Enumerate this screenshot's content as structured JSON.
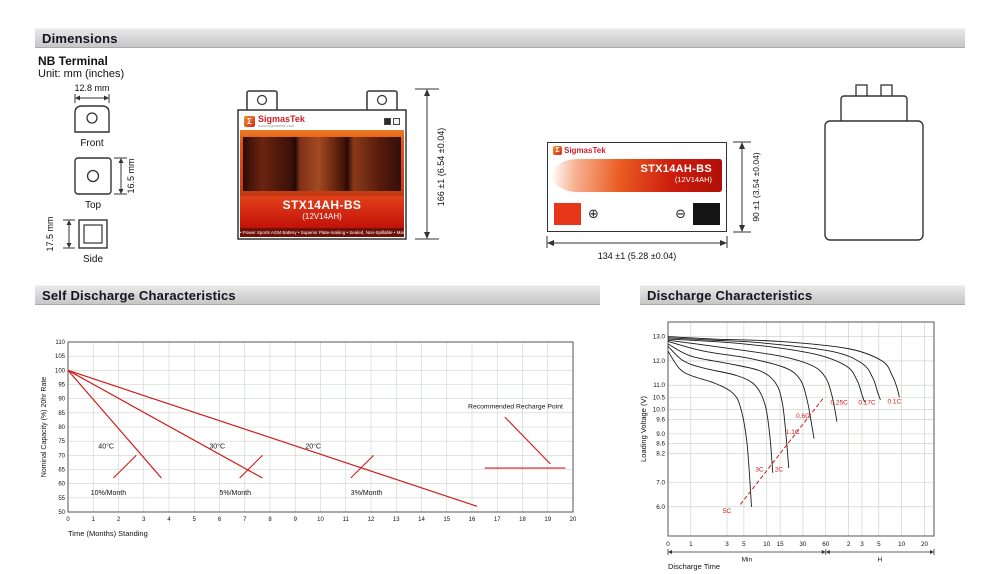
{
  "colors": {
    "accent_red": "#cf1f25",
    "chart_line_red": "#cf1b1b",
    "curve_black": "#1a1a1a",
    "header_bar": "#d6d6d6"
  },
  "sections": {
    "dimensions_title": "Dimensions",
    "self_discharge_title": "Self Discharge Characteristics",
    "discharge_title": "Discharge Characteristics"
  },
  "terminal": {
    "heading": "NB Terminal",
    "unit_note": "Unit: mm (inches)",
    "front": {
      "label": "Front",
      "dim": "12.8 mm"
    },
    "top": {
      "label": "Top",
      "dim": "16.5 mm"
    },
    "side": {
      "label": "Side",
      "dim": "17.5 mm"
    }
  },
  "battery": {
    "brand": "SigmasTek",
    "logo_glyph": "Σ",
    "brand_url": "www.sigmastek.com",
    "model": "STX14AH-BS",
    "rating": "(12V14AH)",
    "features": "• Power Sports AGM Battery   • Superior Plate-making   • Sealed, Non-Spillable   • Maintenance Free",
    "front_height_dim": "166 ±1 (6.54 ±0.04)",
    "side_width_dim": "134 ±1 (5.28 ±0.04)",
    "side_height_dim": "90 ±1 (3.54 ±0.04)",
    "plus_symbol": "⊕",
    "minus_symbol": "⊖"
  },
  "chart_data": [
    {
      "id": "self_discharge",
      "type": "line",
      "title": "Self Discharge Characteristics",
      "xlabel": "Time (Months) Standing",
      "ylabel": "Nominal Capacity (%) 20hr Rate",
      "xlim": [
        0,
        20
      ],
      "ylim": [
        50,
        110
      ],
      "x_ticks": [
        0,
        1,
        2,
        3,
        4,
        5,
        6,
        7,
        8,
        9,
        10,
        11,
        12,
        13,
        14,
        15,
        16,
        17,
        18,
        19,
        20
      ],
      "y_ticks": [
        110,
        105,
        100,
        95,
        90,
        85,
        80,
        75,
        70,
        65,
        60,
        55,
        50
      ],
      "grid": true,
      "legend_position": "none",
      "series": [
        {
          "name": "40°C",
          "rate": "10%/Month",
          "points": [
            [
              0,
              100
            ],
            [
              3.7,
              62
            ]
          ]
        },
        {
          "name": "30°C",
          "rate": "5%/Month",
          "points": [
            [
              0,
              100
            ],
            [
              7.7,
              62
            ]
          ]
        },
        {
          "name": "20°C",
          "rate": "3%/Month",
          "points": [
            [
              0,
              100
            ],
            [
              16.2,
              52
            ]
          ]
        }
      ],
      "temp_labels": [
        {
          "text": "40°C",
          "x": 1.2,
          "y": 72.5
        },
        {
          "text": "30°C",
          "x": 5.6,
          "y": 72.5
        },
        {
          "text": "20°C",
          "x": 9.4,
          "y": 72.5
        }
      ],
      "rate_labels": [
        {
          "text": "10%/Month",
          "x": 0.9,
          "y": 56
        },
        {
          "text": "5%/Month",
          "x": 6.0,
          "y": 56
        },
        {
          "text": "3%/Month",
          "x": 11.2,
          "y": 56
        }
      ],
      "slash_marks": [
        [
          [
            1.8,
            62
          ],
          [
            2.7,
            70
          ]
        ],
        [
          [
            6.8,
            62
          ],
          [
            7.7,
            70
          ]
        ],
        [
          [
            11.2,
            62
          ],
          [
            12.1,
            70
          ]
        ]
      ],
      "recharge_point": {
        "label": "Recommended Recharge Point",
        "label_x": 19.6,
        "label_y": 86.5,
        "leader": [
          [
            17.3,
            83.5
          ],
          [
            19.1,
            67
          ]
        ],
        "segment": [
          [
            16.5,
            65.5
          ],
          [
            19.7,
            65.5
          ]
        ]
      }
    },
    {
      "id": "discharge",
      "type": "line",
      "title": "Discharge Characteristics",
      "xlabel": "Discharge Time",
      "ylabel": "Loading Voltage (V)",
      "x_scale": "log",
      "t_domain_min": [
        0.5,
        1600
      ],
      "ylim": [
        4.8,
        13.6
      ],
      "y_ticks": [
        13.0,
        12.0,
        11.0,
        10.5,
        10.0,
        9.6,
        9.0,
        8.6,
        8.2,
        7.0,
        6.0
      ],
      "x_ticks_minutes": [
        1,
        3,
        5,
        10,
        15,
        30,
        60
      ],
      "x_ticks_hours": [
        2,
        3,
        5,
        10,
        20
      ],
      "origin_label": "0",
      "unit_labels": {
        "minutes": "Min",
        "hours": "H"
      },
      "grid": true,
      "curves": [
        {
          "name": "0.1C",
          "points": [
            [
              0.5,
              13.0
            ],
            [
              2,
              12.9
            ],
            [
              15,
              12.8
            ],
            [
              120,
              12.5
            ],
            [
              330,
              12.0
            ],
            [
              450,
              11.4
            ],
            [
              520,
              10.9
            ],
            [
              560,
              10.5
            ]
          ]
        },
        {
          "name": "0.17C",
          "points": [
            [
              0.5,
              12.95
            ],
            [
              2,
              12.85
            ],
            [
              8,
              12.75
            ],
            [
              70,
              12.4
            ],
            [
              180,
              11.9
            ],
            [
              250,
              11.3
            ],
            [
              290,
              10.7
            ],
            [
              315,
              10.4
            ]
          ]
        },
        {
          "name": "0.25C",
          "points": [
            [
              0.5,
              12.9
            ],
            [
              5,
              12.7
            ],
            [
              40,
              12.3
            ],
            [
              110,
              11.8
            ],
            [
              155,
              11.2
            ],
            [
              180,
              10.6
            ],
            [
              195,
              10.3
            ]
          ]
        },
        {
          "name": "0.6C",
          "points": [
            [
              0.5,
              12.85
            ],
            [
              2,
              12.6
            ],
            [
              15,
              12.2
            ],
            [
              40,
              11.8
            ],
            [
              60,
              11.3
            ],
            [
              72,
              10.6
            ],
            [
              80,
              9.9
            ],
            [
              84,
              9.5
            ]
          ]
        },
        {
          "name": "1.1C",
          "points": [
            [
              0.5,
              12.8
            ],
            [
              1.5,
              12.4
            ],
            [
              6,
              12.1
            ],
            [
              18,
              11.7
            ],
            [
              28,
              11.2
            ],
            [
              34,
              10.4
            ],
            [
              39,
              9.4
            ],
            [
              42,
              8.8
            ]
          ]
        },
        {
          "name": "2C",
          "points": [
            [
              0.5,
              12.7
            ],
            [
              1,
              12.2
            ],
            [
              3,
              11.9
            ],
            [
              8,
              11.6
            ],
            [
              13,
              11.1
            ],
            [
              16,
              10.3
            ],
            [
              18,
              8.9
            ],
            [
              19.5,
              7.6
            ]
          ]
        },
        {
          "name": "3C",
          "points": [
            [
              0.5,
              12.6
            ],
            [
              0.8,
              12.0
            ],
            [
              1.5,
              11.7
            ],
            [
              4,
              11.4
            ],
            [
              7,
              11.0
            ],
            [
              9.5,
              10.2
            ],
            [
              11,
              8.9
            ],
            [
              12,
              7.4
            ]
          ]
        },
        {
          "name": "5C",
          "points": [
            [
              0.5,
              12.4
            ],
            [
              0.7,
              11.7
            ],
            [
              1,
              11.4
            ],
            [
              2,
              11.1
            ],
            [
              3.5,
              10.7
            ],
            [
              4.5,
              10.1
            ],
            [
              5.5,
              8.6
            ],
            [
              6.3,
              6.0
            ]
          ]
        }
      ],
      "cutoff_dashed": [
        [
          4.5,
          6.1
        ],
        [
          55,
          10.45
        ]
      ],
      "curve_labels": [
        {
          "text": "5C",
          "t": 3.0,
          "v": 5.75
        },
        {
          "text": "3C",
          "t": 8.0,
          "v": 7.45
        },
        {
          "text": "2C",
          "t": 14.5,
          "v": 7.45
        },
        {
          "text": "1.1C",
          "t": 22,
          "v": 9.0
        },
        {
          "text": "0.6C",
          "t": 30,
          "v": 9.65
        },
        {
          "text": "0.25C",
          "t": 90,
          "v": 10.2
        },
        {
          "text": "0.17C",
          "t": 210,
          "v": 10.2
        },
        {
          "text": "0.1C",
          "t": 480,
          "v": 10.25
        }
      ]
    }
  ]
}
